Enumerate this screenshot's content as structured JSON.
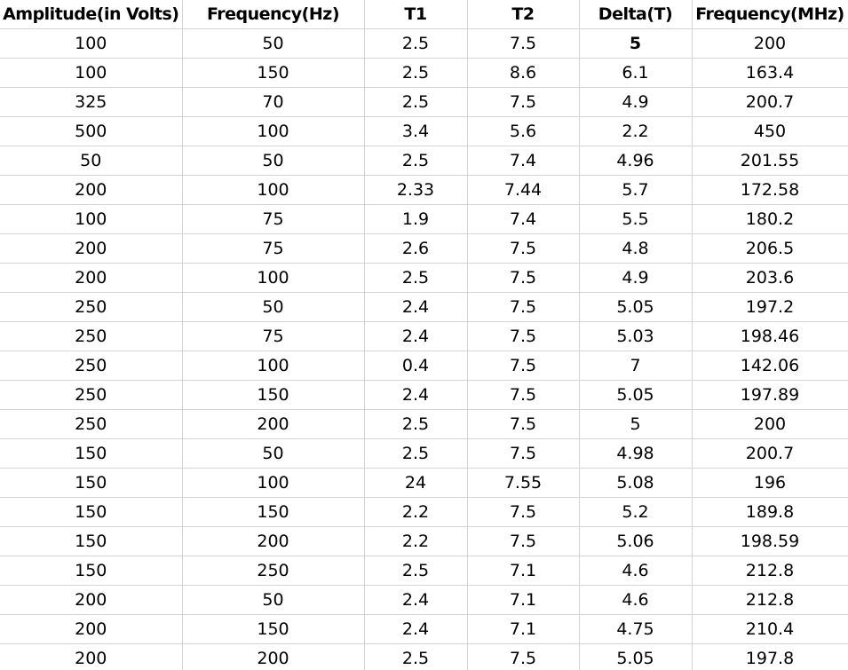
{
  "spreadsheet": {
    "columns": [
      "Amplitude(in Volts)",
      "Frequency(Hz)",
      "T1",
      "T2",
      "Delta(T)",
      "Frequency(MHz)"
    ],
    "rows": [
      [
        "100",
        "50",
        "2.5",
        "7.5",
        "5",
        "200"
      ],
      [
        "100",
        "150",
        "2.5",
        "8.6",
        "6.1",
        "163.4"
      ],
      [
        "325",
        "70",
        "2.5",
        "7.5",
        "4.9",
        "200.7"
      ],
      [
        "500",
        "100",
        "3.4",
        "5.6",
        "2.2",
        "450"
      ],
      [
        "50",
        "50",
        "2.5",
        "7.4",
        "4.96",
        "201.55"
      ],
      [
        "200",
        "100",
        "2.33",
        "7.44",
        "5.7",
        "172.58"
      ],
      [
        "100",
        "75",
        "1.9",
        "7.4",
        "5.5",
        "180.2"
      ],
      [
        "200",
        "75",
        "2.6",
        "7.5",
        "4.8",
        "206.5"
      ],
      [
        "200",
        "100",
        "2.5",
        "7.5",
        "4.9",
        "203.6"
      ],
      [
        "250",
        "50",
        "2.4",
        "7.5",
        "5.05",
        "197.2"
      ],
      [
        "250",
        "75",
        "2.4",
        "7.5",
        "5.03",
        "198.46"
      ],
      [
        "250",
        "100",
        "0.4",
        "7.5",
        "7",
        "142.06"
      ],
      [
        "250",
        "150",
        "2.4",
        "7.5",
        "5.05",
        "197.89"
      ],
      [
        "250",
        "200",
        "2.5",
        "7.5",
        "5",
        "200"
      ],
      [
        "150",
        "50",
        "2.5",
        "7.5",
        "4.98",
        "200.7"
      ],
      [
        "150",
        "100",
        "24",
        "7.55",
        "5.08",
        "196"
      ],
      [
        "150",
        "150",
        "2.2",
        "7.5",
        "5.2",
        "189.8"
      ],
      [
        "150",
        "200",
        "2.2",
        "7.5",
        "5.06",
        "198.59"
      ],
      [
        "150",
        "250",
        "2.5",
        "7.1",
        "4.6",
        "212.8"
      ],
      [
        "200",
        "50",
        "2.4",
        "7.1",
        "4.6",
        "212.8"
      ],
      [
        "200",
        "150",
        "2.4",
        "7.1",
        "4.75",
        "210.4"
      ],
      [
        "200",
        "200",
        "2.5",
        "7.5",
        "5.05",
        "197.8"
      ]
    ],
    "gridline_color": "#d4d4d4",
    "text_color": "#000000"
  }
}
